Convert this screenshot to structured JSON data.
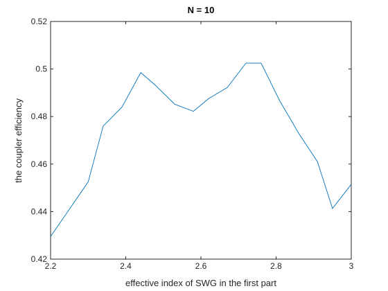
{
  "chart_data": {
    "type": "line",
    "title": "N = 10",
    "xlabel": "effective index of SWG in the first part",
    "ylabel": "the coupler efficiency",
    "xlim": [
      2.2,
      3.0
    ],
    "ylim": [
      0.42,
      0.52
    ],
    "xticks": [
      2.2,
      2.4,
      2.6,
      2.8,
      3.0
    ],
    "xtick_labels": [
      "2.2",
      "2.4",
      "2.6",
      "2.8",
      "3"
    ],
    "yticks": [
      0.42,
      0.44,
      0.46,
      0.48,
      0.5,
      0.52
    ],
    "ytick_labels": [
      "0.42",
      "0.44",
      "0.46",
      "0.48",
      "0.5",
      "0.52"
    ],
    "grid": false,
    "series": [
      {
        "color": "#0072bd",
        "x": [
          2.2,
          2.25,
          2.3,
          2.34,
          2.39,
          2.44,
          2.48,
          2.53,
          2.58,
          2.62,
          2.67,
          2.72,
          2.76,
          2.81,
          2.86,
          2.91,
          2.95,
          3.0
        ],
        "y": [
          0.4295,
          0.441,
          0.4525,
          0.476,
          0.484,
          0.4985,
          0.493,
          0.4852,
          0.4822,
          0.4875,
          0.4922,
          0.5025,
          0.5025,
          0.4865,
          0.473,
          0.461,
          0.4413,
          0.4515
        ]
      }
    ]
  }
}
